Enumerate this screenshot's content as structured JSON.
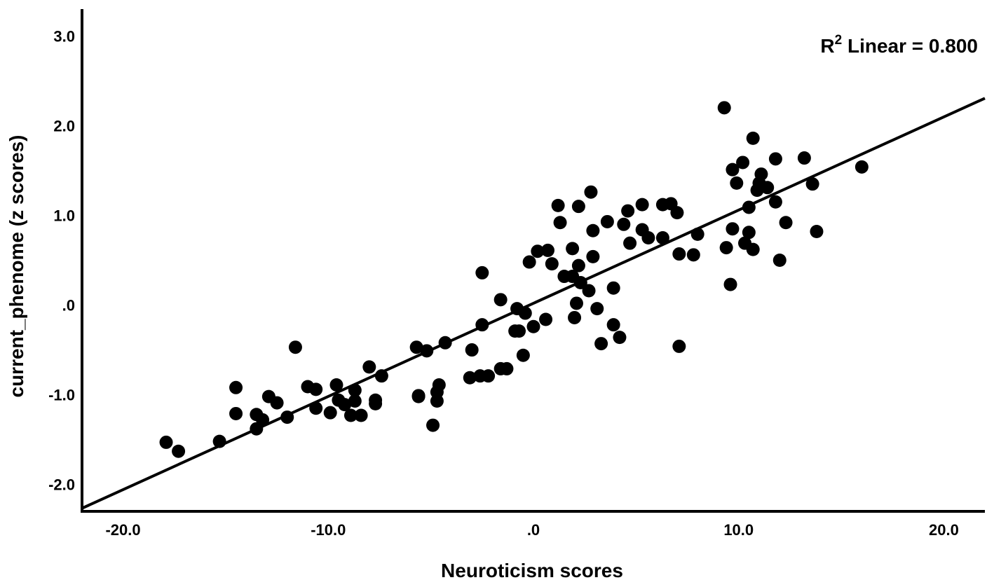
{
  "chart_data": {
    "type": "scatter",
    "xlabel": "Neuroticism scores",
    "ylabel": "current_phenome (z scores)",
    "annotation": {
      "base": "R",
      "sup": "2",
      "rest": " Linear = 0.800"
    },
    "xlim": [
      -22.0,
      22.0
    ],
    "ylim": [
      -2.3,
      3.3
    ],
    "xticks": [
      {
        "value": -20,
        "label": "-20.0"
      },
      {
        "value": -10,
        "label": "-10.0"
      },
      {
        "value": 0,
        "label": ".0"
      },
      {
        "value": 10,
        "label": "10.0"
      },
      {
        "value": 20,
        "label": "20.0"
      }
    ],
    "yticks": [
      {
        "value": -2,
        "label": "-2.0"
      },
      {
        "value": -1,
        "label": "-1.0"
      },
      {
        "value": 0,
        "label": ".0"
      },
      {
        "value": 1,
        "label": "1.0"
      },
      {
        "value": 2,
        "label": "2.0"
      },
      {
        "value": 3,
        "label": "3.0"
      }
    ],
    "fit_line": {
      "slope": 0.1039,
      "intercept": 0.02
    },
    "grid": false,
    "marker_color": "#000000",
    "points": [
      [
        -17.9,
        -1.53
      ],
      [
        -17.3,
        -1.63
      ],
      [
        -15.3,
        -1.52
      ],
      [
        -14.5,
        -0.92
      ],
      [
        -14.5,
        -1.21
      ],
      [
        -13.5,
        -1.22
      ],
      [
        -13.5,
        -1.38
      ],
      [
        -13.2,
        -1.28
      ],
      [
        -12.9,
        -1.02
      ],
      [
        -12.5,
        -1.09
      ],
      [
        -12.0,
        -1.25
      ],
      [
        -11.6,
        -0.47
      ],
      [
        -11.0,
        -0.91
      ],
      [
        -10.6,
        -0.94
      ],
      [
        -10.6,
        -1.15
      ],
      [
        -9.9,
        -1.2
      ],
      [
        -9.6,
        -0.89
      ],
      [
        -9.5,
        -1.06
      ],
      [
        -9.2,
        -1.11
      ],
      [
        -8.9,
        -1.23
      ],
      [
        -8.7,
        -0.95
      ],
      [
        -8.7,
        -1.07
      ],
      [
        -8.4,
        -1.23
      ],
      [
        -8.0,
        -0.69
      ],
      [
        -7.7,
        -1.06
      ],
      [
        -7.7,
        -1.1
      ],
      [
        -7.4,
        -0.79
      ],
      [
        -5.7,
        -0.47
      ],
      [
        -5.6,
        -1.01
      ],
      [
        -5.6,
        -1.02
      ],
      [
        -5.2,
        -0.51
      ],
      [
        -4.9,
        -1.34
      ],
      [
        -4.7,
        -0.97
      ],
      [
        -4.7,
        -1.07
      ],
      [
        -4.6,
        -0.89
      ],
      [
        -4.3,
        -0.42
      ],
      [
        -3.1,
        -0.81
      ],
      [
        -3.0,
        -0.5
      ],
      [
        -2.6,
        -0.79
      ],
      [
        -2.5,
        0.36
      ],
      [
        -2.5,
        -0.22
      ],
      [
        -2.2,
        -0.79
      ],
      [
        -1.6,
        -0.71
      ],
      [
        -1.6,
        0.06
      ],
      [
        -1.3,
        -0.71
      ],
      [
        -0.9,
        -0.29
      ],
      [
        -0.8,
        -0.04
      ],
      [
        -0.7,
        -0.29
      ],
      [
        -0.5,
        -0.56
      ],
      [
        -0.4,
        -0.09
      ],
      [
        -0.2,
        0.48
      ],
      [
        0.0,
        -0.24
      ],
      [
        0.2,
        0.6
      ],
      [
        0.6,
        -0.16
      ],
      [
        0.7,
        0.61
      ],
      [
        0.9,
        0.46
      ],
      [
        1.2,
        1.11
      ],
      [
        1.3,
        0.92
      ],
      [
        1.5,
        0.32
      ],
      [
        1.9,
        0.32
      ],
      [
        1.9,
        0.63
      ],
      [
        2.0,
        -0.14
      ],
      [
        2.1,
        0.02
      ],
      [
        2.2,
        0.44
      ],
      [
        2.2,
        1.1
      ],
      [
        2.3,
        0.25
      ],
      [
        2.7,
        0.16
      ],
      [
        2.8,
        1.26
      ],
      [
        2.9,
        0.83
      ],
      [
        2.9,
        0.54
      ],
      [
        3.1,
        -0.04
      ],
      [
        3.3,
        -0.43
      ],
      [
        3.6,
        0.93
      ],
      [
        3.9,
        0.19
      ],
      [
        3.9,
        -0.22
      ],
      [
        4.2,
        -0.36
      ],
      [
        4.4,
        0.9
      ],
      [
        4.6,
        1.05
      ],
      [
        4.7,
        0.69
      ],
      [
        5.3,
        1.12
      ],
      [
        5.3,
        0.84
      ],
      [
        5.6,
        0.75
      ],
      [
        6.3,
        1.12
      ],
      [
        6.3,
        0.75
      ],
      [
        6.7,
        1.13
      ],
      [
        7.0,
        1.03
      ],
      [
        7.1,
        0.57
      ],
      [
        7.1,
        -0.46
      ],
      [
        7.8,
        0.56
      ],
      [
        8.0,
        0.79
      ],
      [
        9.3,
        2.2
      ],
      [
        9.4,
        0.64
      ],
      [
        9.6,
        0.23
      ],
      [
        9.7,
        1.51
      ],
      [
        9.7,
        0.85
      ],
      [
        9.9,
        1.36
      ],
      [
        10.2,
        1.59
      ],
      [
        10.3,
        0.69
      ],
      [
        10.5,
        0.81
      ],
      [
        10.5,
        1.09
      ],
      [
        10.7,
        1.86
      ],
      [
        10.7,
        0.62
      ],
      [
        10.9,
        1.28
      ],
      [
        11.0,
        1.36
      ],
      [
        11.1,
        1.46
      ],
      [
        11.4,
        1.31
      ],
      [
        11.8,
        1.63
      ],
      [
        11.8,
        1.15
      ],
      [
        12.0,
        0.5
      ],
      [
        12.3,
        0.92
      ],
      [
        13.2,
        1.64
      ],
      [
        13.6,
        1.35
      ],
      [
        13.8,
        0.82
      ],
      [
        16.0,
        1.54
      ]
    ]
  }
}
